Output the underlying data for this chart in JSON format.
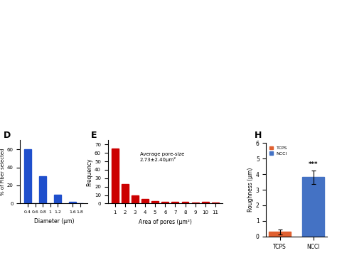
{
  "panel_D": {
    "label": "D",
    "x_positions": [
      0.4,
      0.6,
      0.8,
      1.0,
      1.2,
      1.6,
      1.8
    ],
    "values": [
      60,
      0,
      30,
      0,
      10,
      2,
      0
    ],
    "bar_width": 0.18,
    "bar_color": "#1f4fcc",
    "xlabel": "Diameter (μm)",
    "ylabel": "% of Fiber selected",
    "xlim": [
      0.2,
      2.0
    ],
    "ylim": [
      0,
      70
    ],
    "yticks": [
      0,
      20,
      40,
      60
    ],
    "xticks": [
      0.4,
      0.6,
      0.8,
      1.0,
      1.2,
      1.6,
      1.8
    ],
    "xticklabels": [
      "0.4",
      "0.6",
      "0.8",
      "1",
      "1.2",
      "1.6",
      "1.8"
    ]
  },
  "panel_E": {
    "label": "E",
    "categories": [
      1,
      2,
      3,
      4,
      5,
      6,
      7,
      8,
      9,
      10,
      11
    ],
    "values": [
      65,
      23,
      10,
      5,
      3,
      2,
      2,
      2,
      1,
      2,
      1
    ],
    "bar_color": "#cc0000",
    "xlabel": "Area of pores (μm²)",
    "ylabel": "Frequency",
    "xlim": [
      0.3,
      11.7
    ],
    "ylim": [
      0,
      75
    ],
    "yticks": [
      0,
      10,
      20,
      30,
      40,
      50,
      60,
      70
    ],
    "annotation": "Average pore-size\n2.73±2.40μm²"
  },
  "panel_H": {
    "label": "H",
    "categories": [
      "TCPS",
      "NCCI"
    ],
    "values": [
      0.3,
      3.8
    ],
    "errors": [
      0.15,
      0.45
    ],
    "bar_colors": [
      "#e06030",
      "#4472c4"
    ],
    "ylabel": "Roughness (μm)",
    "ylim": [
      0,
      6
    ],
    "yticks": [
      0,
      1,
      2,
      3,
      4,
      5,
      6
    ],
    "significance": "***",
    "legend_labels": [
      "TCPS",
      "NCCI"
    ],
    "legend_colors": [
      "#e06030",
      "#4472c4"
    ]
  }
}
